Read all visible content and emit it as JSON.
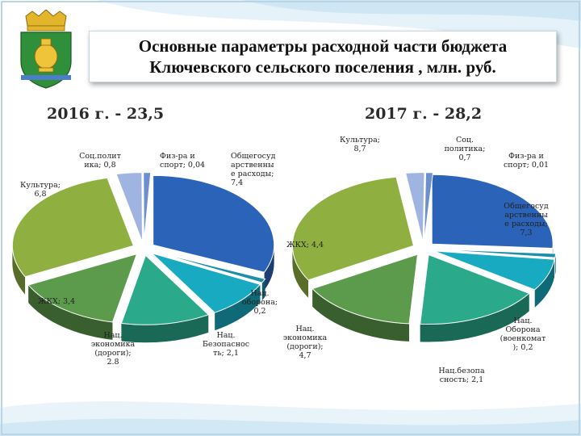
{
  "title": {
    "line1": "Основные параметры расходной части бюджета",
    "line2": "Ключевского сельского поселения , млн. руб."
  },
  "colors": {
    "social": "#9fb4e0",
    "sport": "#6d8fd0",
    "general": "#2b63b8",
    "defense": "#1b90a8",
    "security": "#18aac0",
    "economy": "#2aaa8a",
    "housing": "#5c9a4c",
    "culture": "#8fb040"
  },
  "chart_data": [
    {
      "type": "pie",
      "title": "2016 г. - 23,5",
      "slices": [
        {
          "key": "general",
          "label_lines": [
            "Общегосуд",
            "арственны",
            "е расходы;",
            "7,4"
          ],
          "value": 7.4
        },
        {
          "key": "defense",
          "label_lines": [
            "Нац.",
            "оборона;",
            "0,2"
          ],
          "value": 0.2
        },
        {
          "key": "security",
          "label_lines": [
            "Нац.",
            "Безопаснос",
            "ть; 2,1"
          ],
          "value": 2.1
        },
        {
          "key": "economy",
          "label_lines": [
            "Нац.",
            "экономика",
            "(дороги);",
            "2.8"
          ],
          "value": 2.8
        },
        {
          "key": "housing",
          "label_lines": [
            "ЖКХ; 3,4"
          ],
          "value": 3.4
        },
        {
          "key": "culture",
          "label_lines": [
            "Культура;",
            "6,8"
          ],
          "value": 6.8
        },
        {
          "key": "social",
          "label_lines": [
            "Соц.полит",
            "ика; 0,8"
          ],
          "value": 0.8
        },
        {
          "key": "sport",
          "label_lines": [
            "Физ-ра и",
            "спорт; 0,04"
          ],
          "value": 0.04
        }
      ]
    },
    {
      "type": "pie",
      "title": "2017 г. - 28,2",
      "slices": [
        {
          "key": "general",
          "label_lines": [
            "Общегосуд",
            "арственны",
            "е расходы;",
            "7,3"
          ],
          "value": 7.3
        },
        {
          "key": "defense",
          "label_lines": [
            "Нац.",
            "Оборона",
            "(военкомат",
            "); 0,2"
          ],
          "value": 0.2
        },
        {
          "key": "security",
          "label_lines": [
            "Нац.безопа",
            "сность; 2,1"
          ],
          "value": 2.1
        },
        {
          "key": "economy",
          "label_lines": [
            "Нац.",
            "экономика",
            "(дороги);",
            "4,7"
          ],
          "value": 4.7
        },
        {
          "key": "housing",
          "label_lines": [
            "ЖКХ; 4,4"
          ],
          "value": 4.4
        },
        {
          "key": "culture",
          "label_lines": [
            "Культура;",
            "8,7"
          ],
          "value": 8.7
        },
        {
          "key": "social",
          "label_lines": [
            "Соц.",
            "политика;",
            "0,7"
          ],
          "value": 0.7
        },
        {
          "key": "sport",
          "label_lines": [
            "Физ-ра и",
            "спорт; 0,01"
          ],
          "value": 0.01
        }
      ]
    }
  ]
}
